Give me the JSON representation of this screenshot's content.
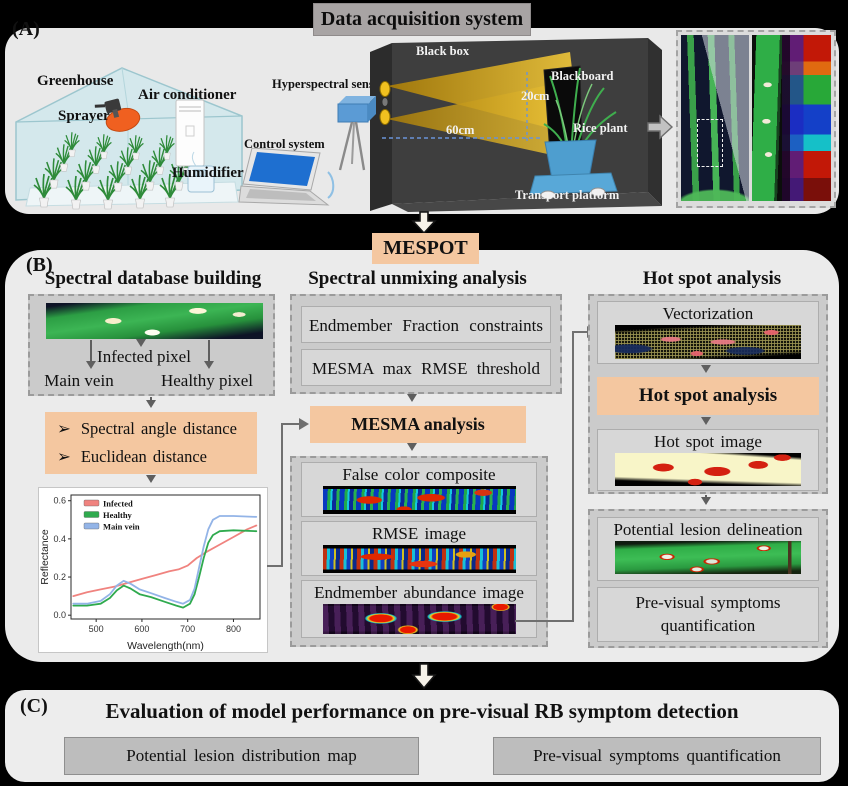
{
  "section_a": {
    "label": "(A)",
    "title": "Data acquisition system",
    "greenhouse": {
      "name": "Greenhouse",
      "air_conditioner": "Air conditioner",
      "sprayer": "Sprayer",
      "humidifier": "Humidifier"
    },
    "control_system": "Control system",
    "hyperspectral_sensor": "Hyperspectral sensor",
    "chamber": {
      "black_box": "Black box",
      "blackboard": "Blackboard",
      "board_height": "20cm",
      "rice_plant": "Rice plant",
      "distance": "60cm",
      "transport_platform": "Transport platform"
    }
  },
  "mespot": "MESPOT",
  "section_b": {
    "label": "(B)",
    "database": {
      "title": "Spectral database building",
      "infected_pixel": "Infected pixel",
      "main_vein": "Main vein",
      "healthy_pixel": "Healthy pixel",
      "bullet": "➢",
      "distances": [
        "Spectral angle distance",
        "Euclidean distance"
      ]
    },
    "unmixing": {
      "title": "Spectral unmixing analysis",
      "constraint_box": "Endmember Fraction constraints",
      "threshold_box": "MESMA max RMSE threshold",
      "mesma": "MESMA analysis",
      "false_color": "False color composite",
      "rmse": "RMSE image",
      "abundance": "Endmember abundance image"
    },
    "hotspot": {
      "title": "Hot spot analysis",
      "vectorization": "Vectorization",
      "analysis": "Hot spot analysis",
      "image": "Hot spot image",
      "delineation": "Potential lesion delineation",
      "quantification": "Pre-visual symptoms quantification"
    }
  },
  "section_c": {
    "label": "(C)",
    "title": "Evaluation of model performance on pre-visual RB symptom detection",
    "box1": "Potential lesion distribution map",
    "box2": "Pre-visual symptoms quantification"
  },
  "chart_data": {
    "type": "line",
    "title": "",
    "xlabel": "Wavelength(nm)",
    "ylabel": "Reflectance",
    "xlim": [
      445,
      858
    ],
    "ylim": [
      -0.02,
      0.63
    ],
    "xticks": [
      500,
      600,
      700,
      800
    ],
    "yticks": [
      0.0,
      0.2,
      0.4,
      0.6
    ],
    "grid": false,
    "legend_position": "top-left",
    "series": [
      {
        "name": "Infected",
        "color": "#f0837f",
        "x": [
          450,
          480,
          510,
          540,
          570,
          600,
          630,
          660,
          680,
          700,
          720,
          740,
          770,
          800,
          830,
          850
        ],
        "values": [
          0.1,
          0.12,
          0.135,
          0.15,
          0.17,
          0.19,
          0.21,
          0.23,
          0.24,
          0.26,
          0.3,
          0.33,
          0.37,
          0.41,
          0.45,
          0.47
        ]
      },
      {
        "name": "Healthy",
        "color": "#2faa4e",
        "x": [
          450,
          480,
          510,
          530,
          545,
          560,
          575,
          595,
          620,
          650,
          675,
          690,
          705,
          715,
          725,
          735,
          745,
          755,
          770,
          800,
          850
        ],
        "values": [
          0.05,
          0.05,
          0.06,
          0.09,
          0.13,
          0.155,
          0.14,
          0.11,
          0.095,
          0.07,
          0.05,
          0.04,
          0.06,
          0.11,
          0.2,
          0.3,
          0.38,
          0.42,
          0.44,
          0.445,
          0.44
        ]
      },
      {
        "name": "Main vein",
        "color": "#93b4e7",
        "x": [
          450,
          480,
          510,
          530,
          545,
          560,
          575,
          595,
          620,
          650,
          675,
          690,
          705,
          715,
          725,
          735,
          745,
          755,
          770,
          800,
          850
        ],
        "values": [
          0.06,
          0.06,
          0.075,
          0.11,
          0.155,
          0.18,
          0.165,
          0.135,
          0.115,
          0.09,
          0.07,
          0.06,
          0.08,
          0.14,
          0.25,
          0.36,
          0.45,
          0.5,
          0.52,
          0.52,
          0.515
        ]
      }
    ]
  }
}
